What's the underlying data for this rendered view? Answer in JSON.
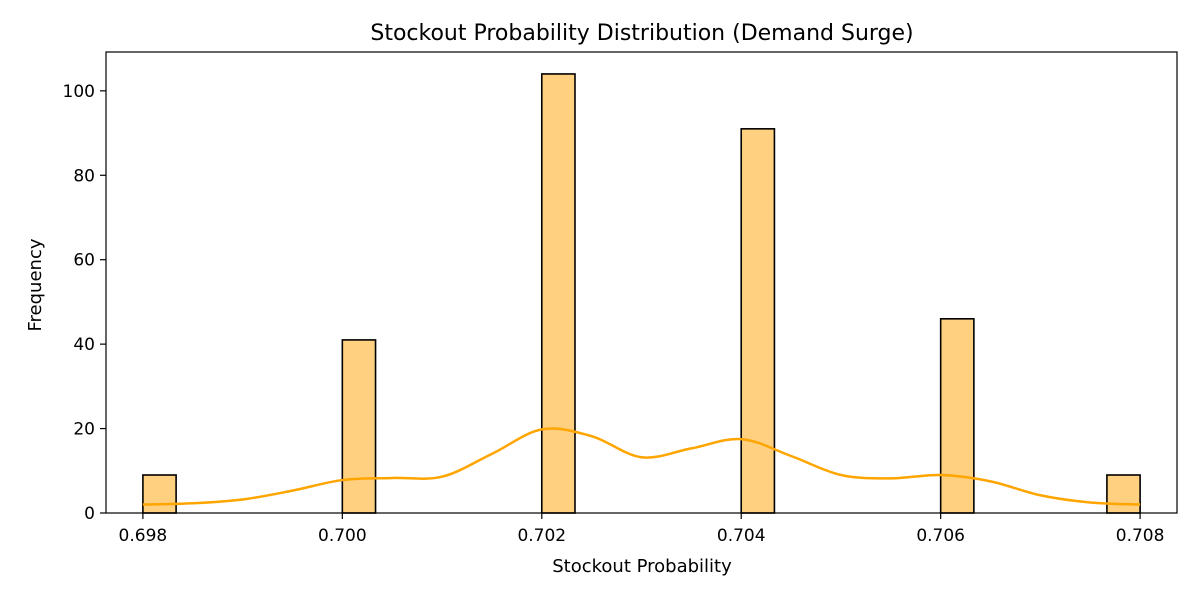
{
  "chart_data": {
    "type": "bar",
    "title": "Stockout Probability Distribution (Demand Surge)",
    "xlabel": "Stockout Probability",
    "ylabel": "Frequency",
    "xlim": [
      0.69763,
      0.70837
    ],
    "ylim": [
      0,
      109.2
    ],
    "x_ticks": [
      "0.698",
      "0.700",
      "0.702",
      "0.704",
      "0.706",
      "0.708"
    ],
    "y_ticks": [
      "0",
      "20",
      "40",
      "60",
      "80",
      "100"
    ],
    "bin_width": 0.000333,
    "bars": [
      {
        "x_start": 0.698,
        "x_end": 0.698333,
        "value": 9
      },
      {
        "x_start": 0.7,
        "x_end": 0.700333,
        "value": 41
      },
      {
        "x_start": 0.702,
        "x_end": 0.702333,
        "value": 104
      },
      {
        "x_start": 0.704,
        "x_end": 0.704333,
        "value": 91
      },
      {
        "x_start": 0.706,
        "x_end": 0.706333,
        "value": 46
      },
      {
        "x_start": 0.707667,
        "x_end": 0.708,
        "value": 9
      }
    ],
    "kde": {
      "x": [
        0.698,
        0.6985,
        0.699,
        0.6995,
        0.7,
        0.7005,
        0.701,
        0.7015,
        0.702,
        0.7025,
        0.703,
        0.7035,
        0.704,
        0.7045,
        0.705,
        0.7055,
        0.706,
        0.7065,
        0.707,
        0.7075,
        0.708
      ],
      "y": [
        2,
        2.3,
        3.2,
        5.3,
        7.8,
        8.3,
        8.6,
        14,
        19.8,
        18.2,
        13.2,
        15.3,
        17.5,
        13.5,
        9,
        8.2,
        9,
        7.5,
        4.2,
        2.5,
        2
      ]
    },
    "grid": false,
    "legend": "none",
    "colors": {
      "bar_fill": "#ffd080",
      "bar_edge": "#000000",
      "kde_line": "#ffa500",
      "axes": "#000000",
      "background": "#ffffff"
    }
  }
}
